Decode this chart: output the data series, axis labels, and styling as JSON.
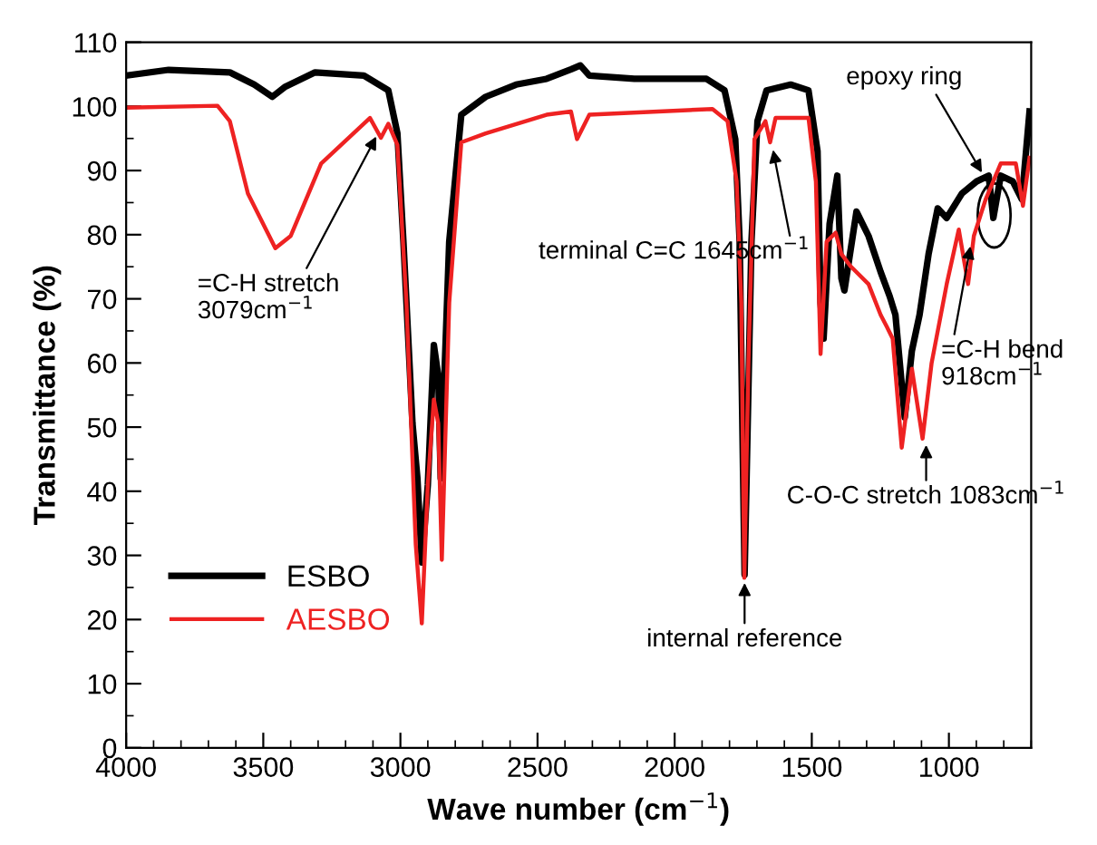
{
  "chart_data": {
    "type": "line",
    "xlabel": "Wave number (cm$^{−1}$)",
    "ylabel": "Transmittance (%)",
    "xlim": [
      4000,
      700
    ],
    "xticks": [
      4000,
      3500,
      3000,
      2500,
      2000,
      1500,
      1000
    ],
    "ylim": [
      0,
      110
    ],
    "yticks": [
      0,
      10,
      20,
      30,
      40,
      50,
      60,
      70,
      80,
      90,
      100,
      110
    ],
    "grid": false,
    "legend": "bottom left",
    "line_style": "solid",
    "marker": "none",
    "series": [
      {
        "name": "ESBO",
        "color": "#000000",
        "x": [
          4000,
          3845,
          3622,
          3533,
          3467,
          3422,
          3311,
          3133,
          3044,
          3011,
          2989,
          2956,
          2938,
          2922,
          2900,
          2878,
          2862,
          2853,
          2822,
          2778,
          2689,
          2578,
          2467,
          2377,
          2344,
          2311,
          2147,
          1884,
          1818,
          1779,
          1763,
          1745,
          1720,
          1698,
          1665,
          1577,
          1512,
          1479,
          1468,
          1457,
          1435,
          1407,
          1392,
          1381,
          1337,
          1293,
          1249,
          1216,
          1195,
          1161,
          1135,
          1107,
          1074,
          1041,
          1008,
          953,
          899,
          855,
          838,
          811,
          767,
          734,
          706
        ],
        "values": [
          104.8,
          105.7,
          105.3,
          103.4,
          101.5,
          103,
          105.3,
          104.8,
          102.5,
          95.8,
          78.9,
          50.6,
          42,
          28.9,
          41,
          62.8,
          58,
          42,
          78.9,
          98.7,
          101.5,
          103.4,
          104.3,
          105.8,
          106.4,
          104.8,
          104.3,
          104.3,
          102.5,
          94.9,
          78.9,
          27,
          78.9,
          97.7,
          102.5,
          103.4,
          102.5,
          93,
          69.4,
          63.8,
          81.7,
          89.2,
          73.2,
          71.3,
          83.6,
          79.8,
          74.2,
          70.4,
          67.5,
          51.5,
          61.9,
          67.5,
          77,
          84.1,
          82.6,
          86.4,
          88.3,
          89.2,
          82.6,
          89.2,
          88.3,
          85.5,
          99.2
        ]
      },
      {
        "name": "AESBO",
        "color": "#ee2222",
        "x": [
          4000,
          3667,
          3622,
          3556,
          3456,
          3400,
          3289,
          3111,
          3071,
          3044,
          3011,
          2978,
          2944,
          2922,
          2900,
          2878,
          2862,
          2849,
          2822,
          2778,
          2689,
          2467,
          2378,
          2356,
          2311,
          1862,
          1807,
          1774,
          1757,
          1746,
          1731,
          1709,
          1669,
          1652,
          1632,
          1512,
          1485,
          1468,
          1446,
          1413,
          1392,
          1359,
          1293,
          1249,
          1227,
          1205,
          1172,
          1135,
          1096,
          1063,
          1008,
          964,
          930,
          909,
          866,
          811,
          756,
          730,
          706
        ],
        "values": [
          99.8,
          100.1,
          97.7,
          86.4,
          77.9,
          79.8,
          91.1,
          98.2,
          95.1,
          97.3,
          94,
          69.4,
          31.7,
          19.4,
          41.1,
          54.3,
          50.6,
          29.3,
          69.4,
          94.4,
          95.8,
          98.7,
          99.2,
          94.9,
          98.7,
          99.6,
          97.7,
          88.3,
          69.4,
          26.5,
          60,
          94.9,
          97.7,
          94.4,
          98.2,
          98.2,
          88.3,
          61.4,
          78.9,
          80.3,
          77,
          75.1,
          72.3,
          67.5,
          65.7,
          63.8,
          46.8,
          59.1,
          48.2,
          60,
          72.3,
          80.8,
          72.3,
          79.8,
          85.5,
          91.1,
          91.1,
          84.5,
          92
        ]
      }
    ],
    "annotations": [
      {
        "text": "=C-H stretch\n3079cm$^{−1}$",
        "x": 3079,
        "y": 96
      },
      {
        "text": "terminal C=C 1645cm$^{−1}$",
        "x": 1645,
        "y": 94
      },
      {
        "text": "internal reference",
        "x": 1745,
        "y": 26.5
      },
      {
        "text": "C-O-C stretch 1083cm$^{−1}$",
        "x": 1083,
        "y": 48
      },
      {
        "text": "=C-H bend\n918cm$^{−1}$",
        "x": 918,
        "y": 79
      },
      {
        "text": "epoxy ring",
        "x": 870,
        "y": 89
      }
    ]
  }
}
